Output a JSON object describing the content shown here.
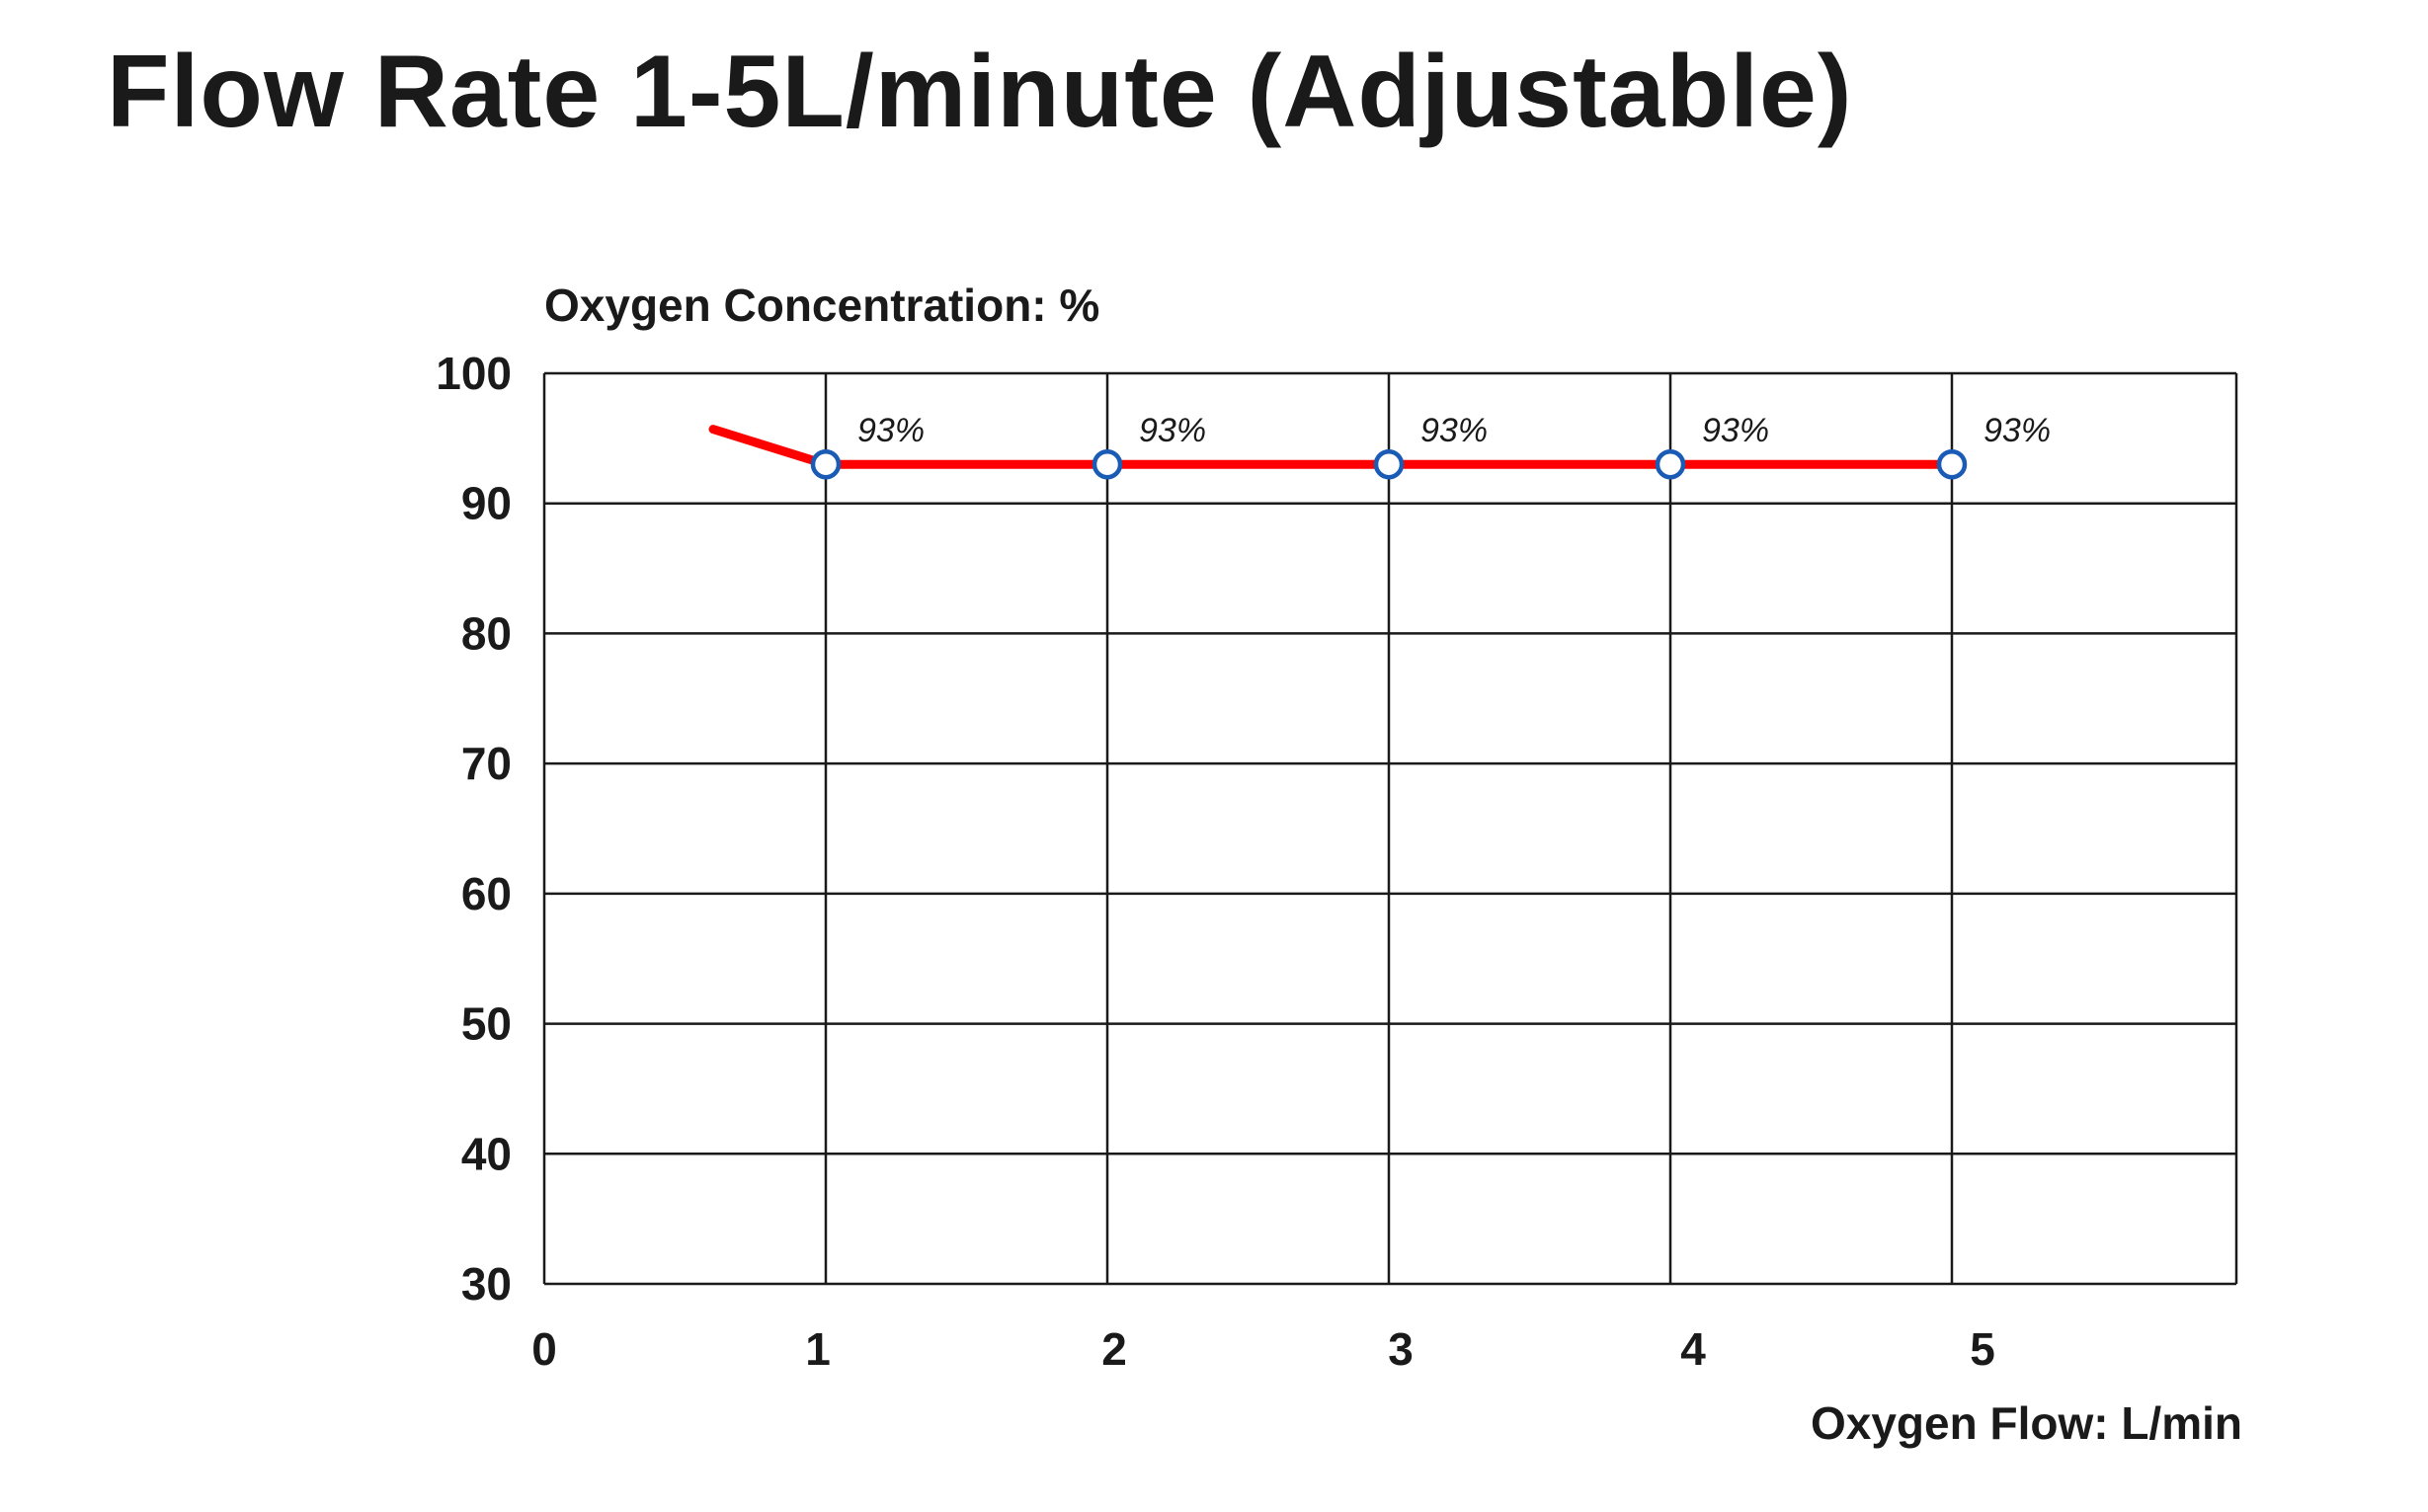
{
  "title": "Flow Rate 1-5L/minute (Adjustable)",
  "chart_data": {
    "type": "line",
    "title": "Flow Rate 1-5L/minute (Adjustable)",
    "xlabel": "Oxygen Flow: L/min",
    "ylabel": "Oxygen Concentration: %",
    "x_ticks": [
      "0",
      "1",
      "2",
      "3",
      "4",
      "5"
    ],
    "y_ticks": [
      "30",
      "40",
      "50",
      "60",
      "70",
      "80",
      "90",
      "100"
    ],
    "xlim": [
      0,
      6
    ],
    "ylim": [
      30,
      100
    ],
    "grid": true,
    "series": [
      {
        "color": "#ff0000",
        "marker_color": "#1a5bb5",
        "lead_in": {
          "x": [
            0.6,
            1
          ],
          "y": [
            95.7,
            93
          ]
        },
        "x": [
          1,
          2,
          3,
          4,
          5
        ],
        "y": [
          93,
          93,
          93,
          93,
          93
        ],
        "labels": [
          "93%",
          "93%",
          "93%",
          "93%",
          "93%"
        ]
      }
    ]
  }
}
